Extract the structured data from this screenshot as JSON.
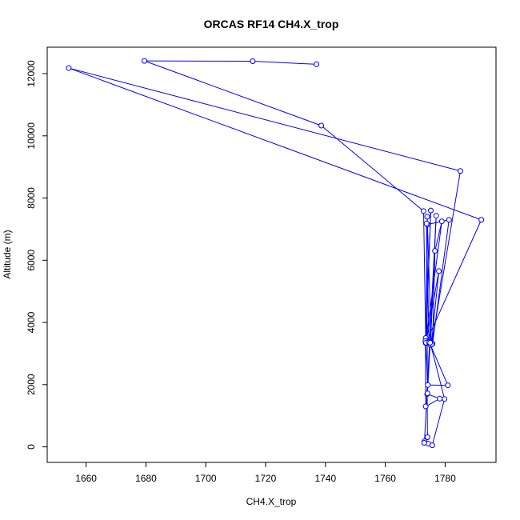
{
  "chart_data": {
    "type": "line",
    "title": "ORCAS RF14 CH4.X_trop",
    "xlabel": "CH4.X_trop",
    "ylabel": "Altitude (m)",
    "xlim": [
      1647,
      1797
    ],
    "ylim": [
      -500,
      12850
    ],
    "xticks": [
      1660,
      1680,
      1700,
      1720,
      1740,
      1760,
      1780
    ],
    "yticks": [
      0,
      2000,
      4000,
      6000,
      8000,
      10000,
      12000
    ],
    "grid": false,
    "legend": "none",
    "series": [
      {
        "color": "#0000ff",
        "marker": "open-circle",
        "x": [
          1737.0,
          1715.7,
          1679.5,
          1738.6,
          1772.8,
          1773.5,
          1775.2,
          1773.6,
          1774.0,
          1775.4,
          1777.9,
          1773.7,
          1774.1,
          1781.3,
          1775.8,
          1776.6,
          1778.9,
          1773.5,
          1774.2,
          1780.9,
          1775.1,
          1777.0,
          1773.1,
          1774.4,
          1773.0,
          1774.1,
          1774.0,
          1778.2,
          1773.5,
          1773.4,
          1773.6,
          1792.1,
          1654.2,
          1785.1,
          1775.5,
          1774.6,
          1773.8,
          1774.1,
          1775.0,
          1779.8,
          1775.7
        ],
        "y": [
          12300,
          12400,
          12410,
          10330,
          7580,
          3500,
          7600,
          3350,
          7400,
          3290,
          5650,
          3400,
          7150,
          7300,
          3320,
          6300,
          7250,
          3340,
          1990,
          1980,
          3280,
          7430,
          180,
          100,
          130,
          310,
          1700,
          1550,
          1300,
          3400,
          3350,
          7300,
          12180,
          8870,
          3300,
          3360,
          7180,
          1720,
          3350,
          1540,
          50
        ]
      }
    ]
  }
}
